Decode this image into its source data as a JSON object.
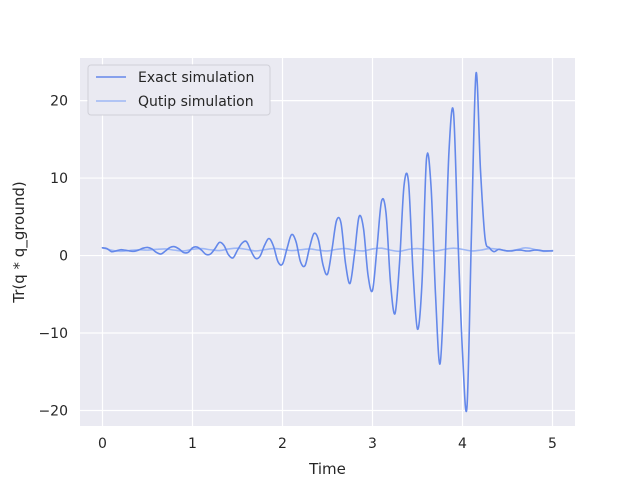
{
  "chart_data": {
    "type": "line",
    "title": "",
    "xlabel": "Time",
    "ylabel": "Tr(q * q_ground)",
    "xlim": [
      -0.25,
      5.25
    ],
    "ylim": [
      -22,
      25.5
    ],
    "xticks": [
      0,
      1,
      2,
      3,
      4,
      5
    ],
    "xtick_labels": [
      "0",
      "1",
      "2",
      "3",
      "4",
      "5"
    ],
    "yticks": [
      -20,
      -10,
      0,
      10,
      20
    ],
    "ytick_labels": [
      "−20",
      "−10",
      "0",
      "10",
      "20"
    ],
    "grid": true,
    "legend_position": "top-left",
    "background_color": "#eaeaf2",
    "series": [
      {
        "name": "Exact simulation",
        "color": "#6488ea",
        "x": [
          0.0,
          0.05,
          0.1,
          0.15,
          0.2,
          0.25,
          0.3,
          0.35,
          0.4,
          0.45,
          0.5,
          0.55,
          0.6,
          0.65,
          0.7,
          0.75,
          0.8,
          0.85,
          0.9,
          0.95,
          1.0,
          1.05,
          1.1,
          1.15,
          1.2,
          1.25,
          1.3,
          1.35,
          1.4,
          1.45,
          1.5,
          1.55,
          1.6,
          1.65,
          1.7,
          1.75,
          1.8,
          1.85,
          1.9,
          1.95,
          2.0,
          2.05,
          2.1,
          2.15,
          2.2,
          2.25,
          2.3,
          2.35,
          2.4,
          2.45,
          2.5,
          2.55,
          2.6,
          2.65,
          2.7,
          2.75,
          2.8,
          2.85,
          2.9,
          2.95,
          3.0,
          3.05,
          3.1,
          3.15,
          3.2,
          3.25,
          3.3,
          3.35,
          3.4,
          3.45,
          3.5,
          3.55,
          3.6,
          3.65,
          3.7,
          3.75,
          3.8,
          3.85,
          3.9,
          3.95,
          4.0,
          4.05,
          4.1,
          4.15,
          4.2,
          4.25,
          4.3,
          4.35,
          4.4,
          4.45,
          4.5,
          4.55,
          4.6,
          4.65,
          4.7,
          4.75,
          4.8,
          4.85,
          4.9,
          4.95,
          5.0
        ],
        "y": [
          1.0,
          0.9,
          0.5,
          0.6,
          0.75,
          0.7,
          0.6,
          0.55,
          0.7,
          0.95,
          1.05,
          0.85,
          0.4,
          0.2,
          0.6,
          1.05,
          1.15,
          0.85,
          0.4,
          0.4,
          1.0,
          1.1,
          0.7,
          0.15,
          0.2,
          0.9,
          1.7,
          1.3,
          0.1,
          -0.3,
          0.7,
          1.6,
          1.8,
          0.6,
          -0.35,
          -0.1,
          1.3,
          2.2,
          1.2,
          -0.8,
          -1.1,
          0.9,
          2.7,
          1.8,
          -0.8,
          -1.3,
          1.0,
          2.85,
          2.0,
          -1.2,
          -2.4,
          0.8,
          4.5,
          4.2,
          -1.0,
          -3.6,
          0.2,
          5.0,
          3.5,
          -2.5,
          -4.5,
          1.0,
          7.0,
          5.5,
          -3.5,
          -7.5,
          -1.0,
          9.0,
          9.5,
          -2.0,
          -9.5,
          -3.5,
          12.5,
          9.0,
          -5.0,
          -14.0,
          -3.0,
          13.5,
          18.5,
          2.0,
          -12.5,
          -19.5,
          3.0,
          23.5,
          11.0,
          2.3,
          1.0,
          0.5,
          0.8,
          0.7,
          0.6,
          0.6,
          0.7,
          0.7,
          0.6,
          0.6,
          0.7,
          0.7,
          0.6,
          0.6,
          0.6
        ]
      },
      {
        "name": "Qutip simulation",
        "color": "#9eb7f5",
        "x": [
          0.0,
          0.1,
          0.2,
          0.3,
          0.4,
          0.5,
          0.6,
          0.7,
          0.8,
          0.9,
          1.0,
          1.1,
          1.2,
          1.3,
          1.4,
          1.5,
          1.6,
          1.7,
          1.8,
          1.9,
          2.0,
          2.1,
          2.2,
          2.3,
          2.4,
          2.5,
          2.6,
          2.7,
          2.8,
          2.9,
          3.0,
          3.1,
          3.2,
          3.3,
          3.4,
          3.5,
          3.6,
          3.7,
          3.8,
          3.9,
          4.0,
          4.1,
          4.2,
          4.3,
          4.4,
          4.5,
          4.6,
          4.7,
          4.8,
          4.9,
          5.0
        ],
        "y": [
          1.0,
          0.7,
          0.55,
          0.65,
          0.75,
          0.7,
          0.8,
          0.85,
          0.7,
          0.6,
          0.8,
          0.9,
          0.75,
          0.65,
          0.85,
          0.95,
          0.8,
          0.6,
          0.75,
          0.9,
          0.8,
          0.65,
          0.75,
          0.85,
          0.7,
          0.6,
          0.8,
          0.9,
          0.7,
          0.6,
          0.85,
          0.95,
          0.7,
          0.55,
          0.8,
          0.9,
          0.75,
          0.6,
          0.8,
          0.95,
          0.8,
          0.6,
          0.7,
          0.9,
          0.8,
          0.6,
          0.75,
          1.0,
          0.8,
          0.55,
          0.65
        ]
      }
    ]
  }
}
